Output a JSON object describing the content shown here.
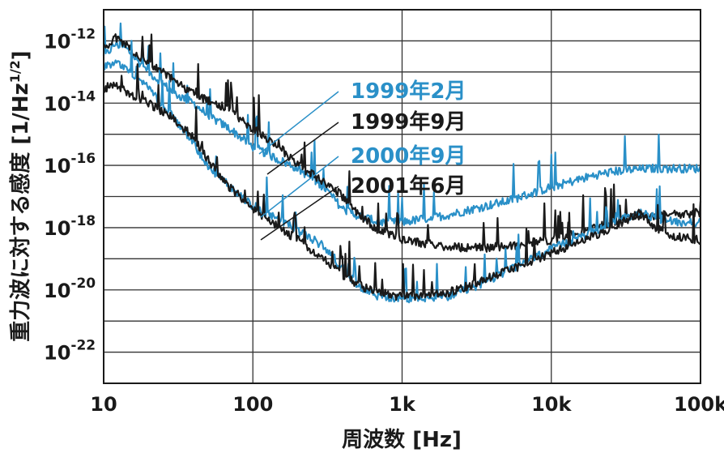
{
  "chart_data": {
    "type": "line",
    "x_scale": "log",
    "y_scale": "log",
    "xlabel": "周波数 [Hz]",
    "ylabel": "重力波に対する感度 [1/Hz",
    "ylabel_exp": "1/2",
    "ylabel_end": "]",
    "xlim": [
      10,
      100000
    ],
    "ylim": [
      1e-23,
      1e-11
    ],
    "x_ticks": [
      {
        "value": 10,
        "label": "10"
      },
      {
        "value": 100,
        "label": "100"
      },
      {
        "value": 1000,
        "label": "1k"
      },
      {
        "value": 10000,
        "label": "10k"
      },
      {
        "value": 100000,
        "label": "100k"
      }
    ],
    "y_ticks": [
      {
        "value": 1e-12,
        "base": "10",
        "exp": "-12"
      },
      {
        "value": 1e-14,
        "base": "10",
        "exp": "-14"
      },
      {
        "value": 1e-16,
        "base": "10",
        "exp": "-16"
      },
      {
        "value": 1e-18,
        "base": "10",
        "exp": "-18"
      },
      {
        "value": 1e-20,
        "base": "10",
        "exp": "-20"
      },
      {
        "value": 1e-22,
        "base": "10",
        "exp": "-22"
      }
    ],
    "grid": true,
    "legend_placement": "center (labels with leader lines)",
    "series": [
      {
        "name": "1999年2月",
        "color": "#2a90c8",
        "points": [
          [
            10,
            3e-13
          ],
          [
            12,
            8e-13
          ],
          [
            14,
            6e-13
          ],
          [
            16,
            3e-13
          ],
          [
            20,
            1e-13
          ],
          [
            30,
            2e-14
          ],
          [
            40,
            1e-14
          ],
          [
            50,
            4e-15
          ],
          [
            70,
            1.5e-15
          ],
          [
            100,
            4e-16
          ],
          [
            150,
            1.5e-16
          ],
          [
            200,
            8e-17
          ],
          [
            300,
            2e-17
          ],
          [
            400,
            4e-18
          ],
          [
            500,
            2.5e-18
          ],
          [
            700,
            1.5e-18
          ],
          [
            1000,
            1.5e-18
          ],
          [
            2000,
            2.5e-18
          ],
          [
            3000,
            4e-18
          ],
          [
            5000,
            7e-18
          ],
          [
            10000,
            2e-17
          ],
          [
            20000,
            5e-17
          ],
          [
            30000,
            7e-17
          ],
          [
            50000,
            8e-17
          ],
          [
            100000,
            8e-17
          ]
        ]
      },
      {
        "name": "1999年9月",
        "color": "#1a1a1a",
        "points": [
          [
            10,
            6e-13
          ],
          [
            12,
            1.2e-12
          ],
          [
            14,
            8e-13
          ],
          [
            16,
            4e-13
          ],
          [
            20,
            2e-13
          ],
          [
            30,
            5e-14
          ],
          [
            40,
            2e-14
          ],
          [
            50,
            1.2e-14
          ],
          [
            70,
            6e-15
          ],
          [
            100,
            1.5e-15
          ],
          [
            150,
            4e-16
          ],
          [
            200,
            1e-16
          ],
          [
            300,
            3e-17
          ],
          [
            400,
            1e-17
          ],
          [
            500,
            3e-18
          ],
          [
            700,
            8e-19
          ],
          [
            1000,
            4e-19
          ],
          [
            2000,
            2.5e-19
          ],
          [
            3000,
            2.2e-19
          ],
          [
            5000,
            2.5e-19
          ],
          [
            10000,
            4e-19
          ],
          [
            20000,
            1e-18
          ],
          [
            30000,
            2e-18
          ],
          [
            50000,
            2.5e-18
          ],
          [
            100000,
            3e-18
          ]
        ]
      },
      {
        "name": "2000年9月",
        "color": "#2a90c8",
        "points": [
          [
            10,
            1.5e-13
          ],
          [
            12,
            2e-13
          ],
          [
            14,
            1.5e-13
          ],
          [
            16,
            8e-14
          ],
          [
            20,
            3e-14
          ],
          [
            30,
            3e-15
          ],
          [
            40,
            5e-16
          ],
          [
            50,
            1e-16
          ],
          [
            70,
            2e-17
          ],
          [
            100,
            5e-18
          ],
          [
            150,
            2e-18
          ],
          [
            200,
            8e-19
          ],
          [
            300,
            2.5e-19
          ],
          [
            400,
            5e-20
          ],
          [
            500,
            1.5e-20
          ],
          [
            700,
            6e-21
          ],
          [
            1000,
            5e-21
          ],
          [
            2000,
            6e-21
          ],
          [
            3000,
            1.2e-20
          ],
          [
            5000,
            4e-20
          ],
          [
            10000,
            2e-19
          ],
          [
            20000,
            8e-19
          ],
          [
            30000,
            2e-18
          ],
          [
            40000,
            3e-18
          ],
          [
            50000,
            2e-18
          ],
          [
            70000,
            1.5e-18
          ],
          [
            100000,
            1.5e-18
          ]
        ]
      },
      {
        "name": "2001年6月",
        "color": "#1a1a1a",
        "points": [
          [
            10,
            3e-14
          ],
          [
            12,
            4e-14
          ],
          [
            15,
            2e-14
          ],
          [
            20,
            1e-14
          ],
          [
            30,
            3e-15
          ],
          [
            40,
            8e-16
          ],
          [
            50,
            1.5e-16
          ],
          [
            70,
            2e-17
          ],
          [
            100,
            4e-18
          ],
          [
            150,
            1e-18
          ],
          [
            200,
            4e-19
          ],
          [
            300,
            1e-19
          ],
          [
            400,
            3e-20
          ],
          [
            500,
            1.5e-20
          ],
          [
            700,
            8e-21
          ],
          [
            1000,
            6e-21
          ],
          [
            2000,
            8e-21
          ],
          [
            3000,
            1.5e-20
          ],
          [
            5000,
            4e-20
          ],
          [
            10000,
            1.5e-19
          ],
          [
            20000,
            6e-19
          ],
          [
            30000,
            1.5e-18
          ],
          [
            40000,
            3e-18
          ],
          [
            50000,
            1e-18
          ],
          [
            70000,
            5e-19
          ],
          [
            100000,
            4e-19
          ]
        ]
      }
    ]
  }
}
